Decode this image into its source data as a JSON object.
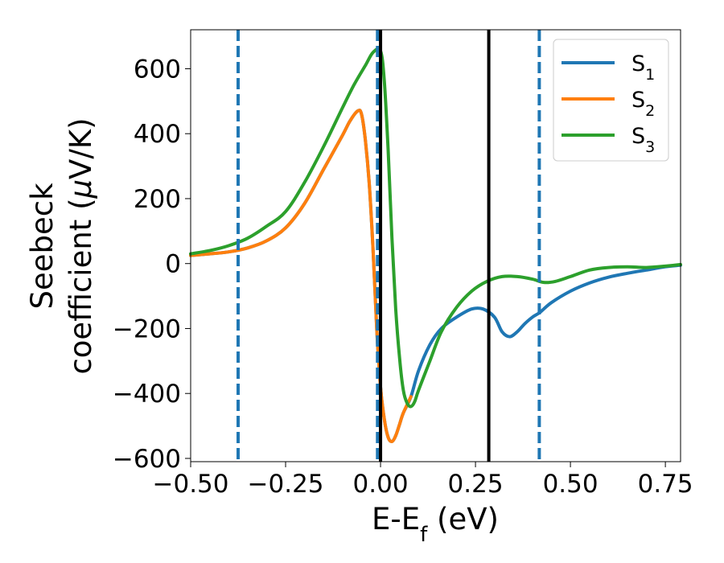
{
  "chart_data": {
    "type": "line",
    "title": "",
    "xlabel": {
      "main": "E-E",
      "sub": "f",
      "unit": " (eV)"
    },
    "ylabel": {
      "line1": "Seebeck",
      "line2_prefix": "coefficient  (",
      "line2_mu": "μ",
      "line2_suffix": "V/K)"
    },
    "xlim": [
      -0.5,
      0.79
    ],
    "ylim": [
      -610,
      720
    ],
    "xticks": [
      -0.5,
      -0.25,
      0.0,
      0.25,
      0.5,
      0.75
    ],
    "xtick_labels": [
      "−0.50",
      "−0.25",
      "0.00",
      "0.25",
      "0.50",
      "0.75"
    ],
    "yticks": [
      -600,
      -400,
      -200,
      0,
      200,
      400,
      600
    ],
    "ytick_labels": [
      "−600",
      "−400",
      "−200",
      "0",
      "200",
      "400",
      "600"
    ],
    "legend_position": "top-right",
    "grid": false,
    "series": [
      {
        "name": "S1",
        "label_main": "S",
        "label_sub": "1",
        "color": "#1f77b4",
        "x": [
          -0.5,
          -0.45,
          -0.4,
          -0.35,
          -0.3,
          -0.25,
          -0.2,
          -0.15,
          -0.1,
          -0.08,
          -0.06,
          -0.05,
          -0.04,
          -0.03,
          -0.02,
          -0.01,
          0.0,
          0.01,
          0.02,
          0.03,
          0.04,
          0.05,
          0.06,
          0.08,
          0.1,
          0.13,
          0.16,
          0.2,
          0.24,
          0.27,
          0.3,
          0.32,
          0.34,
          0.36,
          0.38,
          0.4,
          0.42,
          0.45,
          0.5,
          0.55,
          0.6,
          0.65,
          0.7,
          0.75,
          0.79
        ],
        "y": [
          25,
          30,
          36,
          48,
          70,
          110,
          185,
          290,
          395,
          440,
          470,
          460,
          380,
          250,
          50,
          -200,
          -380,
          -480,
          -535,
          -548,
          -530,
          -495,
          -460,
          -410,
          -330,
          -250,
          -200,
          -165,
          -140,
          -140,
          -165,
          -210,
          -225,
          -210,
          -185,
          -165,
          -150,
          -120,
          -85,
          -60,
          -42,
          -30,
          -20,
          -10,
          -5
        ]
      },
      {
        "name": "S2",
        "label_main": "S",
        "label_sub": "2",
        "color": "#ff7f0e",
        "x": [
          -0.5,
          -0.45,
          -0.4,
          -0.35,
          -0.3,
          -0.25,
          -0.2,
          -0.15,
          -0.1,
          -0.08,
          -0.06,
          -0.05,
          -0.04,
          -0.03,
          -0.02,
          -0.01,
          0.0,
          0.01,
          0.02,
          0.03,
          0.04,
          0.05,
          0.06,
          0.08
        ],
        "y": [
          25,
          30,
          36,
          48,
          70,
          110,
          185,
          290,
          395,
          440,
          470,
          460,
          380,
          250,
          50,
          -200,
          -380,
          -480,
          -535,
          -548,
          -530,
          -495,
          -460,
          -410
        ]
      },
      {
        "name": "S3",
        "label_main": "S",
        "label_sub": "3",
        "color": "#2ca02c",
        "x": [
          -0.5,
          -0.45,
          -0.4,
          -0.35,
          -0.3,
          -0.25,
          -0.2,
          -0.15,
          -0.1,
          -0.07,
          -0.04,
          -0.02,
          0.0,
          0.01,
          0.02,
          0.03,
          0.04,
          0.05,
          0.06,
          0.07,
          0.08,
          0.09,
          0.1,
          0.13,
          0.16,
          0.2,
          0.24,
          0.28,
          0.32,
          0.36,
          0.4,
          0.43,
          0.46,
          0.5,
          0.55,
          0.6,
          0.65,
          0.7,
          0.75,
          0.79
        ],
        "y": [
          30,
          40,
          55,
          78,
          115,
          160,
          250,
          360,
          480,
          550,
          610,
          650,
          655,
          560,
          350,
          80,
          -140,
          -290,
          -390,
          -430,
          -440,
          -425,
          -390,
          -300,
          -210,
          -135,
          -85,
          -55,
          -40,
          -40,
          -48,
          -58,
          -55,
          -40,
          -20,
          -12,
          -10,
          -12,
          -8,
          -3
        ]
      }
    ],
    "vlines": [
      {
        "x": -0.375,
        "style": "dashed",
        "color": "#1f77b4"
      },
      {
        "x": -0.008,
        "style": "dashed",
        "color": "#1f77b4"
      },
      {
        "x": 0.0,
        "style": "solid",
        "color": "#000000"
      },
      {
        "x": 0.285,
        "style": "solid",
        "color": "#000000"
      },
      {
        "x": 0.418,
        "style": "dashed",
        "color": "#1f77b4"
      }
    ]
  }
}
